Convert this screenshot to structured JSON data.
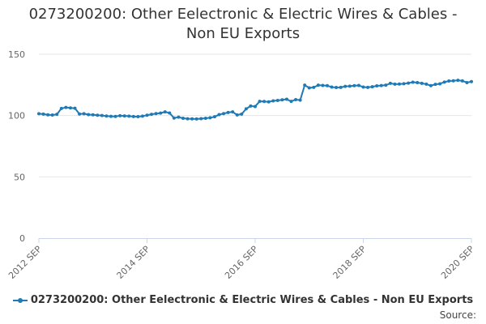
{
  "title_lines": [
    "0273200200: Other Eelectronic & Electric Wires & Cables -",
    "Non EU Exports"
  ],
  "source_label": "Source:",
  "colors": {
    "series": "#1f7ab5",
    "grid": "#e6e6e6",
    "axis": "#ccd6eb",
    "tick_text": "#666666"
  },
  "chart_data": {
    "type": "line",
    "title": "0273200200: Other Eelectronic & Electric Wires & Cables - Non EU Exports",
    "xlabel": "",
    "ylabel": "",
    "ylim": [
      0,
      150
    ],
    "yticks": [
      0,
      50,
      100,
      150
    ],
    "xticks": [
      {
        "label": "2012 SEP",
        "index": 0
      },
      {
        "label": "2014 SEP",
        "index": 24
      },
      {
        "label": "2016 SEP",
        "index": 48
      },
      {
        "label": "2018 SEP",
        "index": 72
      },
      {
        "label": "2020 SEP",
        "index": 96
      }
    ],
    "x_start": "2012 SEP",
    "x_frequency": "monthly",
    "grid": true,
    "legend": "bottom-center",
    "series": [
      {
        "name": "0273200200: Other Eelectronic & Electric Wires & Cables - Non EU Exports",
        "values": [
          101.5,
          101.2,
          100.6,
          100.4,
          101.0,
          105.8,
          106.6,
          106.2,
          106.0,
          101.3,
          101.5,
          100.8,
          100.6,
          100.3,
          100.0,
          99.6,
          99.4,
          99.3,
          99.9,
          99.7,
          99.5,
          99.2,
          99.1,
          99.5,
          100.3,
          101.0,
          101.6,
          102.0,
          103.0,
          102.1,
          98.0,
          98.7,
          97.8,
          97.4,
          97.3,
          97.2,
          97.5,
          97.8,
          98.2,
          99.0,
          100.8,
          101.6,
          102.5,
          103.0,
          100.5,
          101.2,
          105.5,
          107.8,
          107.4,
          111.6,
          111.5,
          111.2,
          112.0,
          112.3,
          112.8,
          113.3,
          111.6,
          113.0,
          112.6,
          124.8,
          122.6,
          123.0,
          124.8,
          124.6,
          124.4,
          123.2,
          122.9,
          123.0,
          123.8,
          124.0,
          124.4,
          124.6,
          123.2,
          123.0,
          123.5,
          124.2,
          124.5,
          124.8,
          126.3,
          125.6,
          125.7,
          126.0,
          126.5,
          127.2,
          126.9,
          126.3,
          125.6,
          124.4,
          125.5,
          125.9,
          127.3,
          128.2,
          128.4,
          128.8,
          128.3,
          126.9,
          127.7
        ]
      }
    ]
  }
}
